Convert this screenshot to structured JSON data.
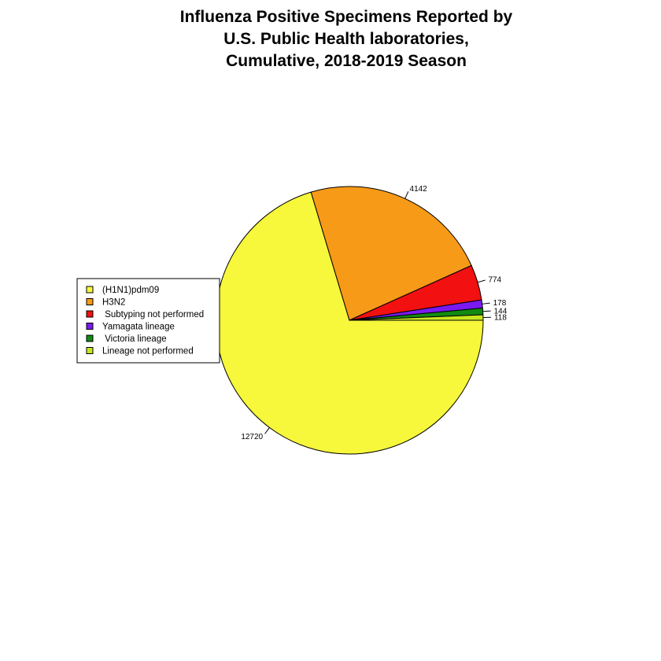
{
  "chart_data": {
    "type": "pie",
    "title_lines": [
      "Influenza Positive Specimens Reported by",
      "U.S. Public Health laboratories,",
      "Cumulative, 2018-2019 Season"
    ],
    "slices": [
      {
        "label": "(H1N1)pdm09",
        "value": 12720,
        "color": "#F7F73B"
      },
      {
        "label": "H3N2",
        "value": 4142,
        "color": "#F79A17"
      },
      {
        "label": " Subtyping not performed",
        "value": 774,
        "color": "#F21010"
      },
      {
        "label": "Yamagata lineage",
        "value": 178,
        "color": "#7A1AF0"
      },
      {
        "label": " Victoria lineage",
        "value": 144,
        "color": "#128A12"
      },
      {
        "label": "Lineage not performed",
        "value": 118,
        "color": "#C8E61E"
      }
    ],
    "start_angle_deg": 0,
    "direction": "clockwise",
    "legend_position": "left"
  }
}
